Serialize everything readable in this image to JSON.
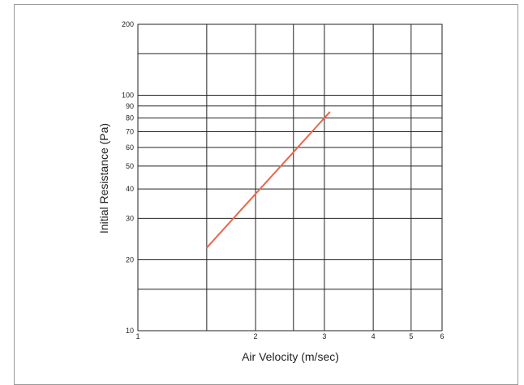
{
  "chart_data": {
    "type": "line",
    "xlabel": "Air Velocity (m/sec)",
    "ylabel": "Initial Resistance (Pa)",
    "x_scale": "log",
    "y_scale": "log",
    "xlim": [
      1,
      6
    ],
    "ylim": [
      10,
      200
    ],
    "x_ticks": [
      1,
      2,
      3,
      4,
      5,
      6
    ],
    "y_ticks": [
      10,
      20,
      30,
      40,
      50,
      60,
      70,
      80,
      90,
      100,
      200
    ],
    "x_gridlines": [
      1.5,
      2,
      2.5,
      3,
      4,
      5
    ],
    "y_gridlines": [
      15,
      20,
      30,
      40,
      50,
      60,
      70,
      80,
      90,
      100,
      150
    ],
    "grid": true,
    "series": [
      {
        "x": [
          1.5,
          3.1
        ],
        "y": [
          22.5,
          85
        ],
        "color": "#e8674a"
      }
    ]
  }
}
